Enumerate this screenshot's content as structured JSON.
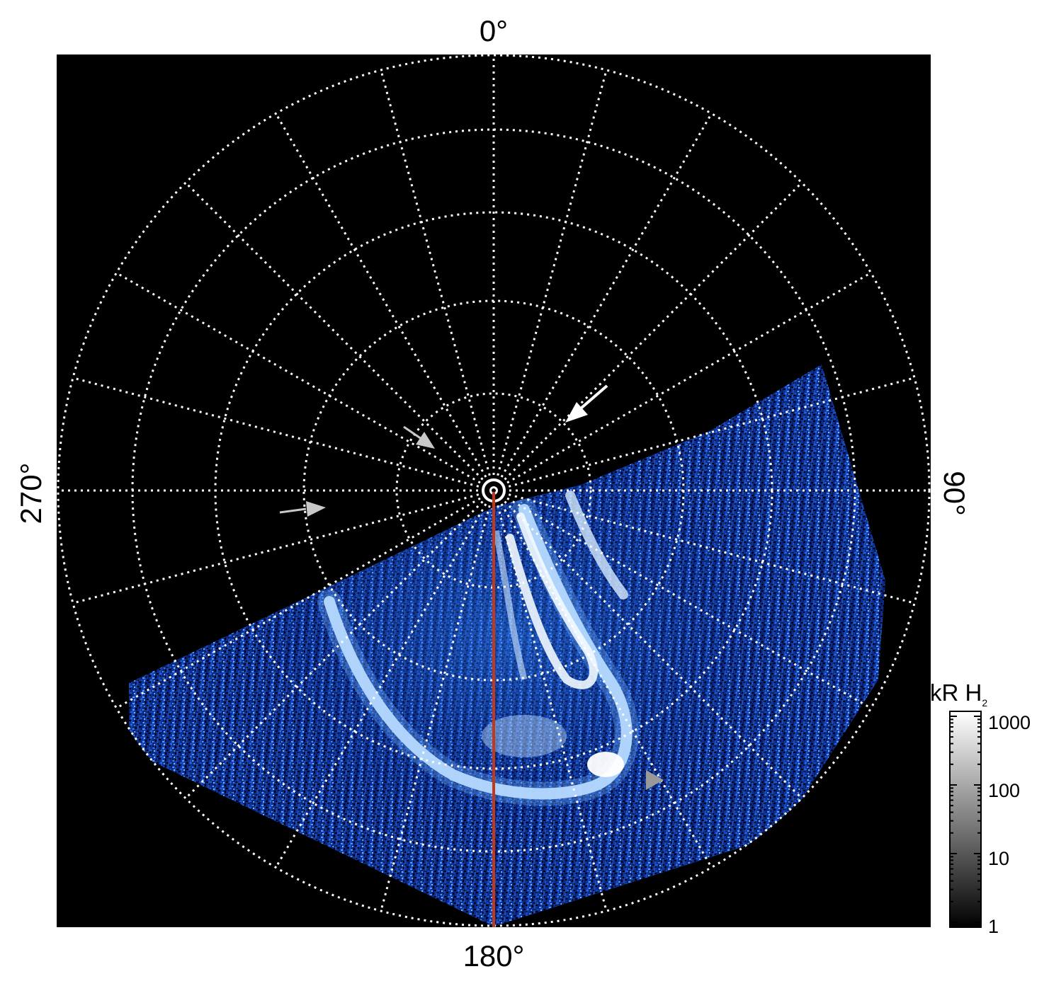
{
  "labels": {
    "top": "0°",
    "bottom": "180°",
    "left": "270°",
    "right": "90°"
  },
  "colorbar": {
    "title_main": "kR H",
    "title_sub": "2",
    "ticks": [
      "1000",
      "100",
      "10",
      "1"
    ]
  },
  "colors": {
    "background": "#000000",
    "grid": "#ffffff",
    "aurora_dim": "#0a2a8a",
    "aurora_mid": "#2f7be6",
    "aurora_bright": "#e8f4ff",
    "meridian_line": "#c0391b",
    "arrow_white": "#ffffff",
    "arrow_gray": "#c8c8c8"
  }
}
